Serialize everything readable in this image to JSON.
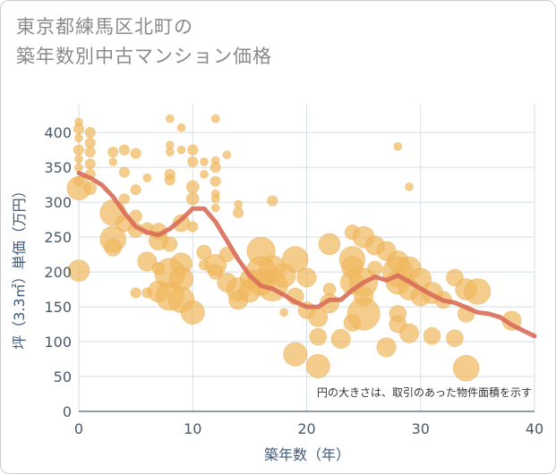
{
  "title_line1": "東京都練馬区北町の",
  "title_line2": "築年数別中古マンション価格",
  "chart_data": {
    "type": "scatter",
    "xlabel": "築年数（年）",
    "ylabel": "坪（3.3㎡）単価（万円）",
    "note": "円の大きさは、取引のあった物件面積を示す",
    "xlim": [
      0,
      40
    ],
    "ylim": [
      0,
      440
    ],
    "xticks": [
      0,
      10,
      20,
      30,
      40
    ],
    "yticks": [
      0,
      50,
      100,
      150,
      200,
      250,
      300,
      350,
      400
    ],
    "grid": true,
    "colors": {
      "bubble": "#f0b860",
      "line": "#d9705a"
    },
    "trend_line": {
      "x": [
        0,
        1,
        2,
        3,
        4,
        5,
        6,
        7,
        8,
        9,
        10,
        11,
        12,
        13,
        14,
        15,
        16,
        17,
        18,
        19,
        20,
        21,
        22,
        23,
        24,
        25,
        26,
        27,
        28,
        29,
        30,
        31,
        32,
        33,
        34,
        35,
        36,
        37,
        38,
        39,
        40
      ],
      "y": [
        342,
        335,
        325,
        308,
        285,
        265,
        257,
        253,
        262,
        275,
        291,
        291,
        272,
        245,
        218,
        195,
        180,
        176,
        167,
        157,
        150,
        150,
        160,
        160,
        174,
        185,
        193,
        188,
        195,
        186,
        176,
        167,
        159,
        156,
        149,
        142,
        140,
        135,
        124,
        116,
        108
      ]
    },
    "points": [
      {
        "x": 0,
        "y": 415,
        "s": 2
      },
      {
        "x": 0,
        "y": 405,
        "s": 3
      },
      {
        "x": 0,
        "y": 392,
        "s": 2
      },
      {
        "x": 0,
        "y": 375,
        "s": 3
      },
      {
        "x": 0,
        "y": 362,
        "s": 2
      },
      {
        "x": 0,
        "y": 350,
        "s": 2
      },
      {
        "x": 0,
        "y": 330,
        "s": 3
      },
      {
        "x": 0,
        "y": 320,
        "s": 9
      },
      {
        "x": 0,
        "y": 202,
        "s": 8
      },
      {
        "x": 1,
        "y": 400,
        "s": 3
      },
      {
        "x": 1,
        "y": 385,
        "s": 3
      },
      {
        "x": 1,
        "y": 372,
        "s": 3
      },
      {
        "x": 1,
        "y": 355,
        "s": 3
      },
      {
        "x": 1,
        "y": 340,
        "s": 3
      },
      {
        "x": 1,
        "y": 320,
        "s": 4
      },
      {
        "x": 3,
        "y": 372,
        "s": 3
      },
      {
        "x": 3,
        "y": 358,
        "s": 2
      },
      {
        "x": 4,
        "y": 375,
        "s": 3
      },
      {
        "x": 4,
        "y": 343,
        "s": 3
      },
      {
        "x": 5,
        "y": 370,
        "s": 3
      },
      {
        "x": 5,
        "y": 318,
        "s": 3
      },
      {
        "x": 4,
        "y": 305,
        "s": 3
      },
      {
        "x": 3,
        "y": 285,
        "s": 10
      },
      {
        "x": 4,
        "y": 270,
        "s": 6
      },
      {
        "x": 3,
        "y": 247,
        "s": 10
      },
      {
        "x": 3,
        "y": 235,
        "s": 6
      },
      {
        "x": 5,
        "y": 280,
        "s": 4
      },
      {
        "x": 5,
        "y": 260,
        "s": 5
      },
      {
        "x": 6,
        "y": 335,
        "s": 2
      },
      {
        "x": 6,
        "y": 262,
        "s": 4
      },
      {
        "x": 6,
        "y": 215,
        "s": 7
      },
      {
        "x": 5,
        "y": 170,
        "s": 3
      },
      {
        "x": 6,
        "y": 170,
        "s": 3
      },
      {
        "x": 7,
        "y": 258,
        "s": 6
      },
      {
        "x": 7,
        "y": 245,
        "s": 7
      },
      {
        "x": 7,
        "y": 205,
        "s": 4
      },
      {
        "x": 7,
        "y": 172,
        "s": 8
      },
      {
        "x": 8,
        "y": 420,
        "s": 2
      },
      {
        "x": 8,
        "y": 382,
        "s": 2
      },
      {
        "x": 8,
        "y": 372,
        "s": 2
      },
      {
        "x": 8,
        "y": 340,
        "s": 3
      },
      {
        "x": 8,
        "y": 332,
        "s": 3
      },
      {
        "x": 8,
        "y": 240,
        "s": 5
      },
      {
        "x": 8,
        "y": 198,
        "s": 12
      },
      {
        "x": 8,
        "y": 165,
        "s": 11
      },
      {
        "x": 9,
        "y": 407,
        "s": 2
      },
      {
        "x": 9,
        "y": 375,
        "s": 2
      },
      {
        "x": 9,
        "y": 270,
        "s": 6
      },
      {
        "x": 9,
        "y": 212,
        "s": 8
      },
      {
        "x": 9,
        "y": 190,
        "s": 9
      },
      {
        "x": 9,
        "y": 160,
        "s": 10
      },
      {
        "x": 10,
        "y": 375,
        "s": 3
      },
      {
        "x": 10,
        "y": 358,
        "s": 3
      },
      {
        "x": 10,
        "y": 322,
        "s": 4
      },
      {
        "x": 10,
        "y": 305,
        "s": 4
      },
      {
        "x": 10,
        "y": 265,
        "s": 3
      },
      {
        "x": 10,
        "y": 142,
        "s": 9
      },
      {
        "x": 11,
        "y": 358,
        "s": 2
      },
      {
        "x": 11,
        "y": 340,
        "s": 2
      },
      {
        "x": 11,
        "y": 228,
        "s": 5
      },
      {
        "x": 11,
        "y": 210,
        "s": 3
      },
      {
        "x": 12,
        "y": 420,
        "s": 2
      },
      {
        "x": 12,
        "y": 360,
        "s": 2
      },
      {
        "x": 12,
        "y": 350,
        "s": 3
      },
      {
        "x": 12,
        "y": 330,
        "s": 3
      },
      {
        "x": 12,
        "y": 312,
        "s": 2
      },
      {
        "x": 12,
        "y": 305,
        "s": 2
      },
      {
        "x": 12,
        "y": 292,
        "s": 2
      },
      {
        "x": 12,
        "y": 210,
        "s": 8
      },
      {
        "x": 12,
        "y": 200,
        "s": 5
      },
      {
        "x": 13,
        "y": 368,
        "s": 2
      },
      {
        "x": 13,
        "y": 185,
        "s": 7
      },
      {
        "x": 13,
        "y": 225,
        "s": 5
      },
      {
        "x": 14,
        "y": 297,
        "s": 2
      },
      {
        "x": 14,
        "y": 285,
        "s": 3
      },
      {
        "x": 14,
        "y": 175,
        "s": 9
      },
      {
        "x": 14,
        "y": 160,
        "s": 7
      },
      {
        "x": 15,
        "y": 190,
        "s": 7
      },
      {
        "x": 15,
        "y": 172,
        "s": 8
      },
      {
        "x": 16,
        "y": 230,
        "s": 11
      },
      {
        "x": 16,
        "y": 200,
        "s": 12
      },
      {
        "x": 16,
        "y": 185,
        "s": 10
      },
      {
        "x": 17,
        "y": 302,
        "s": 3
      },
      {
        "x": 17,
        "y": 205,
        "s": 10
      },
      {
        "x": 17,
        "y": 180,
        "s": 12
      },
      {
        "x": 18,
        "y": 195,
        "s": 9
      },
      {
        "x": 18,
        "y": 142,
        "s": 2
      },
      {
        "x": 19,
        "y": 218,
        "s": 10
      },
      {
        "x": 19,
        "y": 165,
        "s": 6
      },
      {
        "x": 19,
        "y": 82,
        "s": 9
      },
      {
        "x": 20,
        "y": 192,
        "s": 7
      },
      {
        "x": 20,
        "y": 145,
        "s": 6
      },
      {
        "x": 21,
        "y": 135,
        "s": 7
      },
      {
        "x": 21,
        "y": 107,
        "s": 6
      },
      {
        "x": 21,
        "y": 65,
        "s": 9
      },
      {
        "x": 22,
        "y": 240,
        "s": 8
      },
      {
        "x": 22,
        "y": 175,
        "s": 4
      },
      {
        "x": 22,
        "y": 155,
        "s": 7
      },
      {
        "x": 23,
        "y": 104,
        "s": 7
      },
      {
        "x": 24,
        "y": 257,
        "s": 5
      },
      {
        "x": 24,
        "y": 218,
        "s": 10
      },
      {
        "x": 24,
        "y": 207,
        "s": 8
      },
      {
        "x": 24,
        "y": 185,
        "s": 9
      },
      {
        "x": 24,
        "y": 127,
        "s": 6
      },
      {
        "x": 25,
        "y": 250,
        "s": 8
      },
      {
        "x": 25,
        "y": 185,
        "s": 11
      },
      {
        "x": 25,
        "y": 165,
        "s": 7
      },
      {
        "x": 25,
        "y": 140,
        "s": 13
      },
      {
        "x": 26,
        "y": 238,
        "s": 7
      },
      {
        "x": 26,
        "y": 205,
        "s": 5
      },
      {
        "x": 27,
        "y": 230,
        "s": 7
      },
      {
        "x": 27,
        "y": 92,
        "s": 7
      },
      {
        "x": 28,
        "y": 380,
        "s": 2
      },
      {
        "x": 28,
        "y": 215,
        "s": 8
      },
      {
        "x": 28,
        "y": 200,
        "s": 12
      },
      {
        "x": 28,
        "y": 185,
        "s": 9
      },
      {
        "x": 28,
        "y": 140,
        "s": 6
      },
      {
        "x": 28,
        "y": 125,
        "s": 6
      },
      {
        "x": 29,
        "y": 322,
        "s": 2
      },
      {
        "x": 29,
        "y": 205,
        "s": 9
      },
      {
        "x": 29,
        "y": 175,
        "s": 8
      },
      {
        "x": 29,
        "y": 112,
        "s": 7
      },
      {
        "x": 30,
        "y": 190,
        "s": 8
      },
      {
        "x": 30,
        "y": 165,
        "s": 7
      },
      {
        "x": 31,
        "y": 170,
        "s": 8
      },
      {
        "x": 31,
        "y": 108,
        "s": 6
      },
      {
        "x": 32,
        "y": 160,
        "s": 6
      },
      {
        "x": 33,
        "y": 192,
        "s": 6
      },
      {
        "x": 33,
        "y": 105,
        "s": 6
      },
      {
        "x": 34,
        "y": 175,
        "s": 8
      },
      {
        "x": 34,
        "y": 140,
        "s": 6
      },
      {
        "x": 34,
        "y": 62,
        "s": 10
      },
      {
        "x": 35,
        "y": 172,
        "s": 10
      },
      {
        "x": 38,
        "y": 130,
        "s": 7
      }
    ]
  }
}
